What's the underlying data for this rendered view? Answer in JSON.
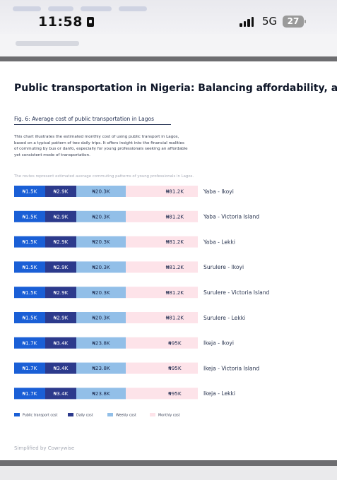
{
  "status_bar": {
    "time": "11:58",
    "network": "5G",
    "battery": "27"
  },
  "article": {
    "headline": "Public transportation in Nigeria: Balancing affordability, accessibili",
    "figure_title": "Fig. 6: Average cost of public transportation  in Lagos",
    "description": "This chart illustrates the estimated monthly cost of using public transport in Lagos, based on a typical pattern of two daily trips. It offers insight into the financial realities of commuting by bus or danfo, especially for young professionals seeking an affordable yet consistent mode of transportation.",
    "note": "The routes represent estimated average commuting patterns of young professionals in Lagos.",
    "brand": "Simplified by Cowrywise"
  },
  "chart_data": {
    "type": "bar",
    "stacked": true,
    "orientation": "horizontal",
    "categories": [
      "Yaba - Ikoyi",
      "Yaba - Victoria Island",
      "Yaba - Lekki",
      "Surulere - Ikoyi",
      "Surulere - Victoria Island",
      "Surulere - Lekki",
      "Ikeja - Ikoyi",
      "Ikeja - Victoria Island",
      "Ikeja - Lekki"
    ],
    "series": [
      {
        "name": "Public transport cost",
        "color": "#1a5fd6",
        "values": [
          1.5,
          1.5,
          1.5,
          1.5,
          1.5,
          1.5,
          1.7,
          1.7,
          1.7
        ],
        "labels": [
          "₦1.5K",
          "₦1.5K",
          "₦1.5K",
          "₦1.5K",
          "₦1.5K",
          "₦1.5K",
          "₦1.7K",
          "₦1.7K",
          "₦1.7K"
        ]
      },
      {
        "name": "Daily cost",
        "color": "#2c3a8c",
        "values": [
          2.9,
          2.9,
          2.9,
          2.9,
          2.9,
          2.9,
          3.4,
          3.4,
          3.4
        ],
        "labels": [
          "₦2.9K",
          "₦2.9K",
          "₦2.9K",
          "₦2.9K",
          "₦2.9K",
          "₦2.9K",
          "₦3.4K",
          "₦3.4K",
          "₦3.4K"
        ]
      },
      {
        "name": "Weekly cost",
        "color": "#92bfe8",
        "values": [
          20.3,
          20.3,
          20.3,
          20.3,
          20.3,
          20.3,
          23.8,
          23.8,
          23.8
        ],
        "labels": [
          "₦20.3K",
          "₦20.3K",
          "₦20.3K",
          "₦20.3K",
          "₦20.3K",
          "₦20.3K",
          "₦23.8K",
          "₦23.8K",
          "₦23.8K"
        ]
      },
      {
        "name": "Monthly cost",
        "color": "#fde3e9",
        "values": [
          81.2,
          81.2,
          81.2,
          81.2,
          81.2,
          81.2,
          95,
          95,
          95
        ],
        "labels": [
          "₦81.2K",
          "₦81.2K",
          "₦81.2K",
          "₦81.2K",
          "₦81.2K",
          "₦81.2K",
          "₦95K",
          "₦95K",
          "₦95K"
        ]
      }
    ],
    "units": "thousand naira",
    "legend_position": "bottom-left",
    "grid": false
  }
}
